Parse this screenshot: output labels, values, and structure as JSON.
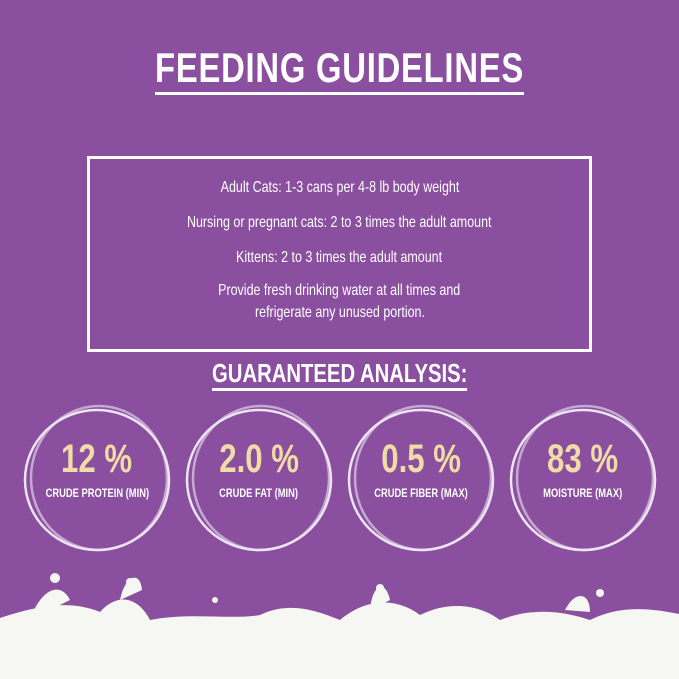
{
  "header": {
    "title": "FEEDING GUIDELINES"
  },
  "guidelines": [
    "Adult Cats: 1-3 cans per 4-8 lb body weight",
    "Nursing or pregnant cats: 2 to 3 times the adult amount",
    "Kittens: 2 to 3 times the adult amount",
    "Provide fresh drinking water at all times and",
    "refrigerate any unused portion."
  ],
  "analysis": {
    "heading": "GUARANTEED ANALYSIS:",
    "items": [
      {
        "value": "12 %",
        "label": "CRUDE PROTEIN (MIN)"
      },
      {
        "value": "2.0 %",
        "label": "CRUDE FAT (MIN)"
      },
      {
        "value": "0.5 %",
        "label": "CRUDE FIBER (MAX)"
      },
      {
        "value": "83 %",
        "label": "MOISTURE (MAX)"
      }
    ]
  }
}
